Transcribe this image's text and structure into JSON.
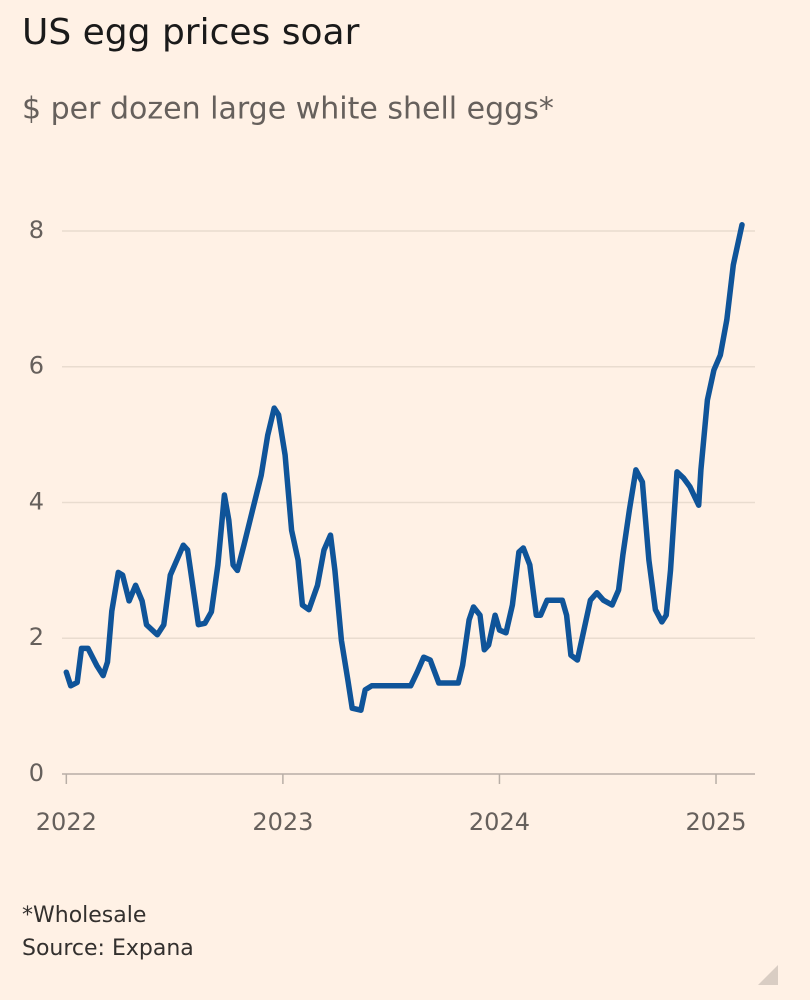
{
  "chart_data": {
    "type": "line",
    "title": "US egg prices soar",
    "subtitle": "$ per dozen large white shell eggs*",
    "notes": [
      "*Wholesale",
      "Source: Expana"
    ],
    "xlim": [
      2021.98,
      2025.18
    ],
    "xticks": [
      2022,
      2023,
      2024,
      2025
    ],
    "ylim": [
      0,
      8.5
    ],
    "yticks": [
      0,
      2,
      4,
      6,
      8
    ],
    "grid": true,
    "series": [
      {
        "name": "US egg prices",
        "color": "#0f5499",
        "x": [
          2022.0,
          2022.02,
          2022.05,
          2022.07,
          2022.1,
          2022.14,
          2022.17,
          2022.19,
          2022.21,
          2022.24,
          2022.26,
          2022.29,
          2022.32,
          2022.35,
          2022.37,
          2022.42,
          2022.45,
          2022.48,
          2022.54,
          2022.56,
          2022.59,
          2022.61,
          2022.64,
          2022.67,
          2022.7,
          2022.73,
          2022.75,
          2022.77,
          2022.79,
          2022.82,
          2022.86,
          2022.9,
          2022.93,
          2022.96,
          2022.98,
          2023.01,
          2023.04,
          2023.07,
          2023.09,
          2023.12,
          2023.16,
          2023.19,
          2023.22,
          2023.24,
          2023.27,
          2023.3,
          2023.32,
          2023.36,
          2023.38,
          2023.41,
          2023.59,
          2023.62,
          2023.65,
          2023.68,
          2023.72,
          2023.81,
          2023.83,
          2023.86,
          2023.88,
          2023.91,
          2023.93,
          2023.95,
          2023.98,
          2024.0,
          2024.03,
          2024.06,
          2024.09,
          2024.11,
          2024.14,
          2024.17,
          2024.19,
          2024.22,
          2024.29,
          2024.31,
          2024.33,
          2024.36,
          2024.39,
          2024.42,
          2024.45,
          2024.48,
          2024.52,
          2024.55,
          2024.57,
          2024.6,
          2024.63,
          2024.66,
          2024.69,
          2024.72,
          2024.75,
          2024.77,
          2024.79,
          2024.82,
          2024.85,
          2024.88,
          2024.92,
          2024.93,
          2024.96,
          2024.99,
          2025.02,
          2025.05,
          2025.08,
          2025.12
        ],
        "values": [
          1.5,
          1.3,
          1.35,
          1.85,
          1.85,
          1.6,
          1.45,
          1.65,
          2.4,
          2.97,
          2.93,
          2.55,
          2.78,
          2.55,
          2.2,
          2.05,
          2.2,
          2.93,
          3.37,
          3.3,
          2.64,
          2.2,
          2.22,
          2.39,
          3.08,
          4.11,
          3.74,
          3.08,
          3.0,
          3.37,
          3.89,
          4.4,
          4.99,
          5.39,
          5.29,
          4.7,
          3.59,
          3.15,
          2.49,
          2.42,
          2.78,
          3.3,
          3.52,
          3.0,
          1.97,
          1.38,
          0.97,
          0.94,
          1.24,
          1.3,
          1.3,
          1.5,
          1.72,
          1.68,
          1.34,
          1.34,
          1.6,
          2.27,
          2.46,
          2.34,
          1.83,
          1.9,
          2.34,
          2.12,
          2.08,
          2.49,
          3.27,
          3.33,
          3.08,
          2.34,
          2.34,
          2.56,
          2.56,
          2.34,
          1.75,
          1.68,
          2.12,
          2.56,
          2.67,
          2.56,
          2.49,
          2.71,
          3.23,
          3.89,
          4.48,
          4.3,
          3.15,
          2.42,
          2.24,
          2.34,
          3.0,
          4.45,
          4.36,
          4.23,
          3.96,
          4.48,
          5.51,
          5.95,
          6.17,
          6.69,
          7.5,
          8.09
        ]
      }
    ]
  }
}
